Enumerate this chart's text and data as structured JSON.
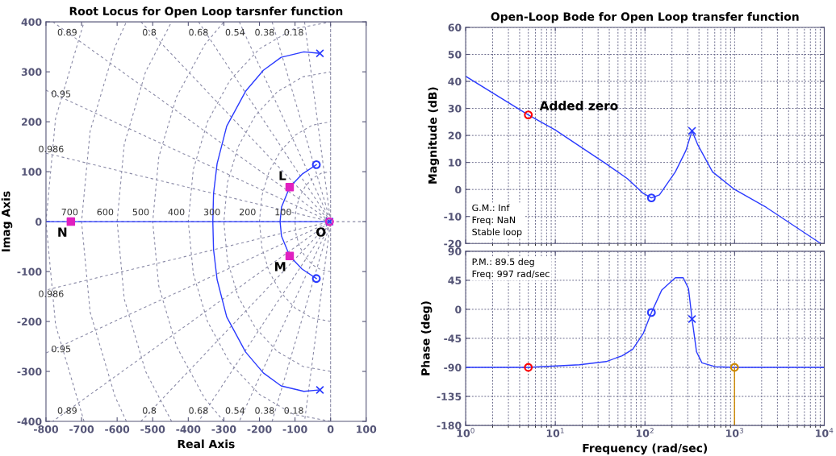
{
  "chart_data": [
    {
      "type": "line",
      "title": "Root Locus for Open Loop tarsnfer function",
      "xlabel": "Real Axis",
      "ylabel": "Imag Axis",
      "xlim": [
        -800,
        100
      ],
      "ylim": [
        -400,
        400
      ],
      "xticks": [
        -800,
        -700,
        -600,
        -500,
        -400,
        -300,
        -200,
        -100,
        0,
        100
      ],
      "yticks": [
        -400,
        -300,
        -200,
        -100,
        0,
        100,
        200,
        300,
        400
      ],
      "ref_lines": [
        {
          "axis": "x",
          "value": 0,
          "color": "#8c8ca8",
          "line_style": "dashed"
        }
      ],
      "series": [
        {
          "type": "line",
          "color": "#8c8ca8",
          "line_style": "dashed",
          "x": [
            -800,
            100
          ],
          "values": [
            0,
            0
          ]
        },
        {
          "type": "line",
          "color": "#8c8ca8",
          "line_style": "dashed",
          "x": [
            -73.2,
            0,
            -73.2
          ],
          "values": [
            400,
            0,
            -400
          ]
        },
        {
          "type": "line",
          "color": "#8c8ca8",
          "line_style": "dashed",
          "x": [
            -164.4,
            0,
            -164.4
          ],
          "values": [
            400,
            0,
            -400
          ]
        },
        {
          "type": "line",
          "color": "#8c8ca8",
          "line_style": "dashed",
          "x": [
            -256.6,
            0,
            -256.6
          ],
          "values": [
            400,
            0,
            -400
          ]
        },
        {
          "type": "line",
          "color": "#8c8ca8",
          "line_style": "dashed",
          "x": [
            -371,
            0,
            -371
          ],
          "values": [
            400,
            0,
            -400
          ]
        },
        {
          "type": "line",
          "color": "#8c8ca8",
          "line_style": "dashed",
          "x": [
            -533,
            0,
            -533
          ],
          "values": [
            400,
            0,
            -400
          ]
        },
        {
          "type": "line",
          "color": "#8c8ca8",
          "line_style": "dashed",
          "x": [
            -780.8,
            0,
            -780.8
          ],
          "values": [
            400,
            0,
            -400
          ]
        },
        {
          "type": "line",
          "color": "#8c8ca8",
          "line_style": "dashed",
          "x": [
            -800,
            0,
            -800
          ],
          "values": [
            263,
            0,
            -263
          ]
        },
        {
          "type": "line",
          "color": "#8c8ca8",
          "line_style": "dashed",
          "x": [
            -800,
            0,
            -800
          ],
          "values": [
            137,
            0,
            -137
          ]
        },
        {
          "type": "line",
          "color": "#8c8ca8",
          "line_style": "dashed",
          "x": [
            0,
            -26,
            -50,
            -71,
            -87,
            -97,
            -100,
            -97,
            -87,
            -71,
            -50,
            -26,
            0
          ],
          "values": [
            -100,
            -97,
            -87,
            -71,
            -50,
            -26,
            0,
            26,
            50,
            71,
            87,
            97,
            100
          ]
        },
        {
          "type": "line",
          "color": "#8c8ca8",
          "line_style": "dashed",
          "x": [
            0,
            -52,
            -100,
            -141,
            -173,
            -193,
            -200,
            -193,
            -173,
            -141,
            -100,
            -52,
            0
          ],
          "values": [
            -200,
            -193,
            -173,
            -141,
            -100,
            -52,
            0,
            52,
            100,
            141,
            173,
            193,
            200
          ]
        },
        {
          "type": "line",
          "color": "#8c8ca8",
          "line_style": "dashed",
          "x": [
            0,
            -78,
            -150,
            -212,
            -260,
            -290,
            -300,
            -290,
            -260,
            -212,
            -150,
            -78,
            0
          ],
          "values": [
            -300,
            -290,
            -260,
            -212,
            -150,
            -78,
            0,
            78,
            150,
            212,
            260,
            290,
            300
          ]
        },
        {
          "type": "line",
          "color": "#8c8ca8",
          "line_style": "dashed",
          "x": [
            0,
            -104,
            -200,
            -283,
            -346,
            -386,
            -400,
            -386,
            -346,
            -283,
            -200,
            -104,
            0
          ],
          "values": [
            -400,
            -386,
            -346,
            -283,
            -200,
            -104,
            0,
            104,
            200,
            283,
            346,
            386,
            400
          ]
        },
        {
          "type": "line",
          "color": "#8c8ca8",
          "line_style": "dashed",
          "x": [
            -300,
            -354,
            -433,
            -483,
            -500,
            -483,
            -433,
            -354,
            -300
          ],
          "values": [
            -400,
            -354,
            -250,
            -129,
            0,
            129,
            250,
            354,
            400
          ]
        },
        {
          "type": "line",
          "color": "#8c8ca8",
          "line_style": "dashed",
          "x": [
            -447,
            -520,
            -580,
            -600,
            -580,
            -520,
            -447
          ],
          "values": [
            -400,
            -300,
            -155,
            0,
            155,
            300,
            400
          ]
        },
        {
          "type": "line",
          "color": "#8c8ca8",
          "line_style": "dashed",
          "x": [
            -574,
            -606,
            -676,
            -700,
            -676,
            -606,
            -574
          ],
          "values": [
            -400,
            -350,
            -181,
            0,
            181,
            350,
            400
          ]
        },
        {
          "type": "line",
          "color": "#8c8ca8",
          "line_style": "dashed",
          "x": [
            -693,
            -773,
            -800,
            -773,
            -693
          ],
          "values": [
            -400,
            -207,
            0,
            207,
            400
          ]
        },
        {
          "type": "line",
          "color": "#2b3bff",
          "line_style": "solid",
          "x": [
            -30,
            -75,
            -139,
            -189,
            -239,
            -292,
            -319,
            -329,
            -331,
            -329,
            -319,
            -292,
            -239,
            -189,
            -139,
            -75,
            -30
          ],
          "values": [
            337,
            340,
            329,
            303,
            261,
            191,
            116,
            56,
            0,
            -56,
            -116,
            -191,
            -261,
            -303,
            -329,
            -340,
            -337
          ]
        },
        {
          "type": "line",
          "color": "#2b3bff",
          "line_style": "solid",
          "x": [
            -800,
            0
          ],
          "values": [
            0,
            0
          ]
        },
        {
          "type": "line",
          "color": "#2b3bff",
          "line_style": "solid",
          "x": [
            -40,
            -80,
            -115,
            -138,
            -142,
            -138,
            -115,
            -80,
            -40
          ],
          "values": [
            114,
            95,
            69,
            29,
            0,
            -29,
            -69,
            -95,
            -114
          ]
        },
        {
          "type": "scatter",
          "color": "#2b3bff",
          "marker": "cross",
          "x": [
            -30,
            -30,
            -3
          ],
          "values": [
            337,
            -337,
            0
          ]
        },
        {
          "type": "scatter",
          "color": "#2b3bff",
          "marker": "circle",
          "x": [
            -40,
            -40
          ],
          "values": [
            114,
            -114
          ]
        },
        {
          "type": "scatter",
          "color": "#e020c0",
          "marker": "square",
          "x": [
            -115,
            -115,
            -730
          ],
          "values": [
            69,
            -69,
            0
          ]
        },
        {
          "type": "scatter",
          "color": "#e020c0",
          "marker": "circle",
          "x": [
            -3
          ],
          "values": [
            0
          ]
        }
      ],
      "annotations": [
        {
          "text": "0.18",
          "x": -65.9,
          "y": 360
        },
        {
          "text": "0.38",
          "x": -148,
          "y": 360
        },
        {
          "text": "0.54",
          "x": -230.9,
          "y": 360
        },
        {
          "text": "0.68",
          "x": -334,
          "y": 360
        },
        {
          "text": "0.8",
          "x": -480,
          "y": 360
        },
        {
          "text": "0.89",
          "x": -702.7,
          "y": 360
        },
        {
          "text": "0.95",
          "x": -720,
          "y": 236.7
        },
        {
          "text": "0.986",
          "x": -740,
          "y": 126.2
        },
        {
          "text": "0.18",
          "x": -65.9,
          "y": -360
        },
        {
          "text": "0.38",
          "x": -148,
          "y": -360
        },
        {
          "text": "0.54",
          "x": -230.9,
          "y": -360
        },
        {
          "text": "0.68",
          "x": -334,
          "y": -360
        },
        {
          "text": "0.8",
          "x": -480,
          "y": -360
        },
        {
          "text": "0.89",
          "x": -702.7,
          "y": -360
        },
        {
          "text": "0.95",
          "x": -720,
          "y": -236.7
        },
        {
          "text": "0.986",
          "x": -740,
          "y": -126.2
        },
        {
          "text": "100",
          "x": -100,
          "y": 0
        },
        {
          "text": "200",
          "x": -200,
          "y": 0
        },
        {
          "text": "300",
          "x": -300,
          "y": 0
        },
        {
          "text": "400",
          "x": -400,
          "y": 0
        },
        {
          "text": "500",
          "x": -500,
          "y": 0
        },
        {
          "text": "600",
          "x": -600,
          "y": 0
        },
        {
          "text": "700",
          "x": -700,
          "y": 0
        },
        {
          "text": "L",
          "x": -115,
          "y": 69
        },
        {
          "text": "M",
          "x": -115,
          "y": -69
        },
        {
          "text": "N",
          "x": -730,
          "y": 0
        },
        {
          "text": "O",
          "x": -3,
          "y": 0
        }
      ]
    },
    {
      "type": "line",
      "title": "Open-Loop Bode for Open Loop transfer function",
      "ylabel": "Magnitude (dB)",
      "log": "x",
      "grid": true,
      "tick_labels": "y",
      "xlim": [
        1,
        10000
      ],
      "ylim": [
        -20,
        60
      ],
      "xticks": [
        1,
        10,
        100,
        1000,
        10000
      ],
      "yticks": [
        -20,
        -10,
        0,
        10,
        20,
        30,
        40,
        50,
        60
      ],
      "series": [
        {
          "type": "line",
          "color": "#2b3bff",
          "line_style": "solid",
          "x": [
            1,
            5,
            10,
            36.9,
            63.7,
            96,
            118,
            145,
            218,
            286,
            335,
            390,
            567,
            1000,
            2223,
            9020
          ],
          "values": [
            41.9,
            27.6,
            22,
            9.5,
            4,
            -1.5,
            -3.1,
            -2,
            6.5,
            14.4,
            21.7,
            16.4,
            6.5,
            0,
            -6.5,
            -19.9
          ]
        },
        {
          "type": "scatter",
          "color": "#ff0000",
          "marker": "circle",
          "x": [
            5
          ],
          "values": [
            27.6
          ]
        },
        {
          "type": "scatter",
          "color": "#2b3bff",
          "marker": "circle",
          "x": [
            118
          ],
          "values": [
            -3.1
          ]
        },
        {
          "type": "scatter",
          "color": "#2b3bff",
          "marker": "cross",
          "x": [
            335
          ],
          "values": [
            21.7
          ]
        }
      ],
      "annotations": [
        {
          "text": "Added zero",
          "x": 5,
          "y": 27.6
        },
        "G.M.: Inf",
        "Freq: NaN",
        "Stable loop"
      ]
    },
    {
      "type": "line",
      "xlabel": "Frequency (rad/sec)",
      "ylabel": "Phase (deg)",
      "log": "x",
      "grid": true,
      "xlim": [
        1,
        10000
      ],
      "ylim": [
        -180,
        90
      ],
      "xticks": [
        {
          "value": 1,
          "label": "10$^{0}$"
        },
        {
          "value": 10,
          "label": "10$^{1}$"
        },
        {
          "value": 100,
          "label": "10$^{2}$"
        },
        {
          "value": 1000,
          "label": "10$^{3}$"
        },
        {
          "value": 10000,
          "label": "10$^{4}$"
        }
      ],
      "yticks": [
        -180,
        -135,
        -90,
        -45,
        0,
        45,
        90
      ],
      "series": [
        {
          "type": "line",
          "color": "#2b3bff",
          "line_style": "solid",
          "x": [
            1,
            5,
            18.6,
            36.9,
            55.6,
            72.9,
            96,
            118,
            154,
            218,
            267,
            306,
            335,
            376,
            432,
            607,
            1000,
            10000
          ],
          "values": [
            -90,
            -90,
            -86,
            -81,
            -72,
            -62,
            -37,
            -5,
            30,
            49,
            49,
            32,
            -15,
            -66,
            -83,
            -89,
            -90,
            -90
          ]
        },
        {
          "type": "scatter",
          "color": "#ff0000",
          "marker": "circle",
          "x": [
            5
          ],
          "values": [
            -90
          ]
        },
        {
          "type": "scatter",
          "color": "#2b3bff",
          "marker": "circle",
          "x": [
            118
          ],
          "values": [
            -5
          ]
        },
        {
          "type": "scatter",
          "color": "#2b3bff",
          "marker": "cross",
          "x": [
            335
          ],
          "values": [
            -15
          ]
        },
        {
          "type": "line",
          "color": "#cc8800",
          "line_style": "solid",
          "x": [
            997,
            997
          ],
          "values": [
            -180,
            -90
          ]
        },
        {
          "type": "scatter",
          "color": "#cc8800",
          "marker": "circle",
          "x": [
            997
          ],
          "values": [
            -90
          ]
        }
      ],
      "annotations": [
        "P.M.: 89.5 deg",
        "Freq: 997 rad/sec"
      ]
    }
  ]
}
